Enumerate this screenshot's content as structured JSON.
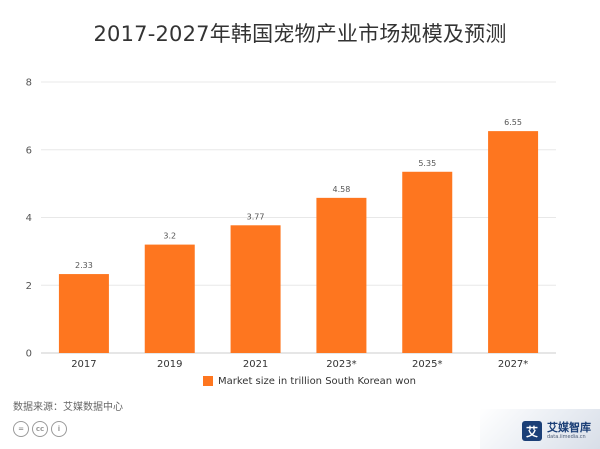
{
  "title": "2017-2027年韩国宠物产业市场规模及预测",
  "chart_data": {
    "type": "bar",
    "categories": [
      "2017",
      "2019",
      "2021",
      "2023*",
      "2025*",
      "2027*"
    ],
    "series": [
      {
        "name": "Market size in trillion South Korean won",
        "values": [
          2.33,
          3.2,
          3.77,
          4.58,
          5.35,
          6.55
        ]
      }
    ],
    "data_labels": [
      "2.33",
      "3.2",
      "3.77",
      "4.58",
      "5.35",
      "6.55"
    ],
    "ylim": [
      0,
      8
    ],
    "yticks": [
      0,
      2,
      4,
      6,
      8
    ],
    "grid": true,
    "legend_position": "bottom",
    "bar_color": "#fe761f"
  },
  "source": "数据来源：艾媒数据中心",
  "license_icons": [
    {
      "icon": "copyright-icon",
      "glyph": "="
    },
    {
      "icon": "cc-icon",
      "glyph": "cc"
    },
    {
      "icon": "attribution-icon",
      "glyph": "i"
    }
  ],
  "brand": {
    "name": "艾媒智库",
    "url": "data.iimedia.cn",
    "mark": "艾",
    "color": "#1b3f77"
  }
}
